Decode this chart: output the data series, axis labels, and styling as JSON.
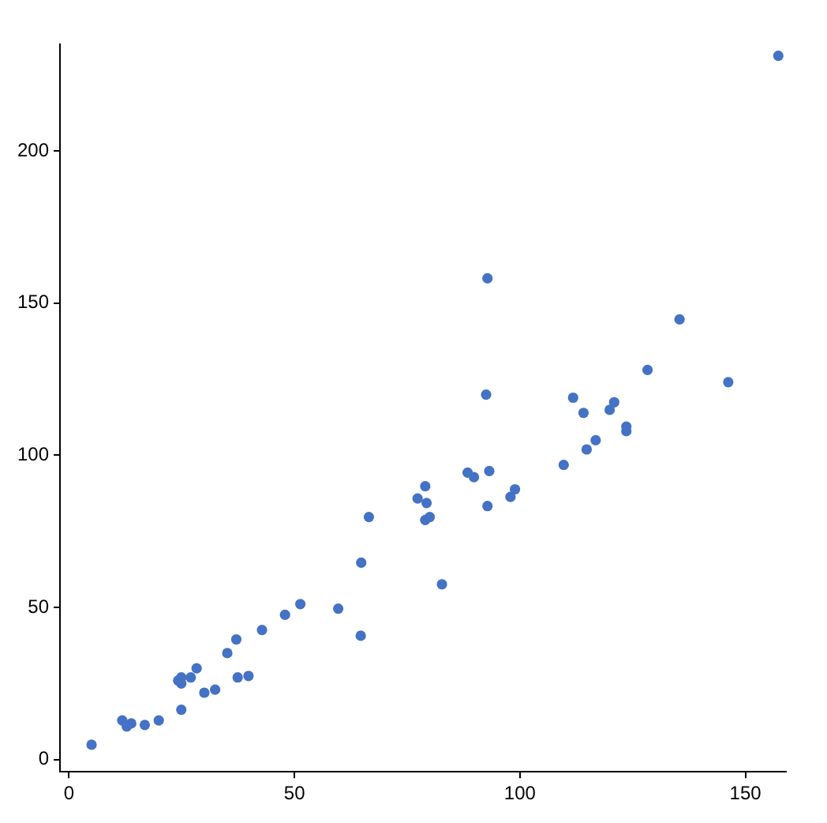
{
  "chart_data": {
    "type": "scatter",
    "x": [
      5.0,
      11.8,
      12.8,
      13.8,
      16.8,
      19.9,
      24.2,
      24.9,
      24.9,
      24.9,
      27,
      28.3,
      30,
      32.4,
      35.1,
      37.1,
      37.4,
      39.8,
      42.8,
      47.9,
      51.3,
      59.7,
      64.8,
      64.7,
      66.5,
      82.7,
      77.3,
      79,
      79.3,
      79,
      80,
      88.4,
      89.8,
      93.2,
      92.8,
      97.9,
      98.9,
      109.7,
      92.8,
      135.4,
      128.3,
      146.2,
      92.5,
      111.8,
      114.1,
      120.9,
      119.9,
      123.6,
      123.6,
      116.8,
      114.8,
      157.3
    ],
    "values": [
      4.9,
      12.9,
      10.9,
      11.9,
      11.4,
      12.9,
      26,
      27,
      25,
      16.4,
      27,
      30,
      22,
      23,
      35,
      39.5,
      27,
      27.5,
      42.6,
      47.6,
      51.1,
      49.6,
      64.7,
      40.7,
      79.7,
      57.6,
      85.8,
      89.8,
      84.3,
      78.7,
      79.7,
      94.3,
      92.8,
      94.8,
      83.3,
      86.3,
      88.8,
      96.8,
      158.1,
      144.6,
      128,
      124,
      119.9,
      118.9,
      113.9,
      117.4,
      114.9,
      109.4,
      107.9,
      104.9,
      101.9,
      231.2
    ],
    "color": "#4472c4",
    "marker": "circle",
    "xlim": [
      -2,
      159
    ],
    "ylim": [
      -4,
      235
    ],
    "xticks": [
      0,
      50,
      100,
      150
    ],
    "yticks": [
      0,
      50,
      100,
      150,
      200
    ],
    "grid": false,
    "legend": false
  }
}
